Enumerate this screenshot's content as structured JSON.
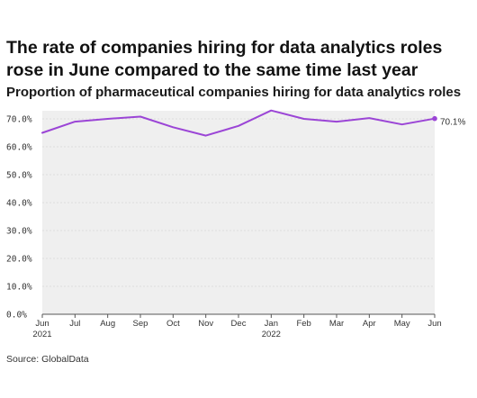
{
  "chart_data": {
    "type": "area",
    "title": "The rate of companies hiring for data analytics roles rose in June compared to the same time last year",
    "subtitle": "Proportion of pharmaceutical companies hiring for data analytics roles",
    "categories": [
      "Jun 2021",
      "Jul 2021",
      "Aug 2021",
      "Sep 2021",
      "Oct 2021",
      "Nov 2021",
      "Dec 2021",
      "Jan 2022",
      "Feb 2022",
      "Mar 2022",
      "Apr 2022",
      "May 2022",
      "Jun 2022"
    ],
    "tick_labels": [
      {
        "month": "Jun",
        "year": "2021"
      },
      {
        "month": "Jul",
        "year": ""
      },
      {
        "month": "Aug",
        "year": ""
      },
      {
        "month": "Sep",
        "year": ""
      },
      {
        "month": "Oct",
        "year": ""
      },
      {
        "month": "Nov",
        "year": ""
      },
      {
        "month": "Dec",
        "year": ""
      },
      {
        "month": "Jan",
        "year": "2022"
      },
      {
        "month": "Feb",
        "year": ""
      },
      {
        "month": "Mar",
        "year": ""
      },
      {
        "month": "Apr",
        "year": ""
      },
      {
        "month": "May",
        "year": ""
      },
      {
        "month": "Jun",
        "year": ""
      }
    ],
    "series": [
      {
        "values": [
          65.0,
          69.0,
          70.0,
          70.8,
          67.0,
          64.0,
          67.5,
          73.0,
          70.0,
          69.0,
          70.3,
          68.0,
          70.1
        ]
      }
    ],
    "ylim": [
      0,
      70
    ],
    "yticks": [
      0,
      10,
      20,
      30,
      40,
      50,
      60,
      70
    ],
    "ytick_labels": [
      "0.0%",
      "10.0%",
      "20.0%",
      "30.0%",
      "40.0%",
      "50.0%",
      "60.0%",
      "70.0%"
    ],
    "end_label": "70.1%",
    "xlabel": "",
    "ylabel": "",
    "grid": true,
    "legend": "none",
    "colors": {
      "line": "#9b45d6",
      "fill": "#efefef",
      "grid": "#dcdcdc",
      "axis": "#555555"
    }
  },
  "source": "Source: GlobalData"
}
